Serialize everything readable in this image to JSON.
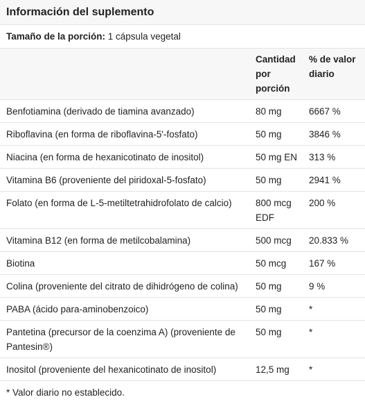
{
  "header": {
    "title": "Información del suplemento"
  },
  "serving": {
    "label": "Tamaño de la porción:",
    "value": "1 cápsula vegetal"
  },
  "table": {
    "columns": [
      "Cantidad por porción",
      "% de valor diario"
    ],
    "rows": [
      [
        "Benfotiamina (derivado de tiamina avanzado)",
        "80 mg",
        "6667 %"
      ],
      [
        "Riboflavina (en forma de riboflavina-5'-fosfato)",
        "50 mg",
        "3846 %"
      ],
      [
        "Niacina (en forma de hexanicotinato de inositol)",
        "50 mg EN",
        "313 %"
      ],
      [
        "Vitamina B6 (proveniente del piridoxal-5-fosfato)",
        "50 mg",
        "2941 %"
      ],
      [
        "Folato (en forma de L-5-metiltetrahidrofolato de calcio)",
        "800 mcg EDF",
        "200 %"
      ],
      [
        "Vitamina B12 (en forma de metilcobalamina)",
        "500 mcg",
        "20.833 %"
      ],
      [
        "Biotina",
        "50 mcg",
        "167 %"
      ],
      [
        "Colina (proveniente del citrato de dihidrógeno de colina)",
        "50 mg",
        "9 %"
      ],
      [
        "PABA (ácido para-aminobenzoico)",
        "50 mg",
        "*"
      ],
      [
        "Pantetina (precursor de la coenzima A) (proveniente de Pantesin®)",
        "50 mg",
        "*"
      ],
      [
        "Inositol (proveniente del hexanicotinato de inositol)",
        "12,5 mg",
        "*"
      ]
    ]
  },
  "footnote": "* Valor diario no establecido."
}
